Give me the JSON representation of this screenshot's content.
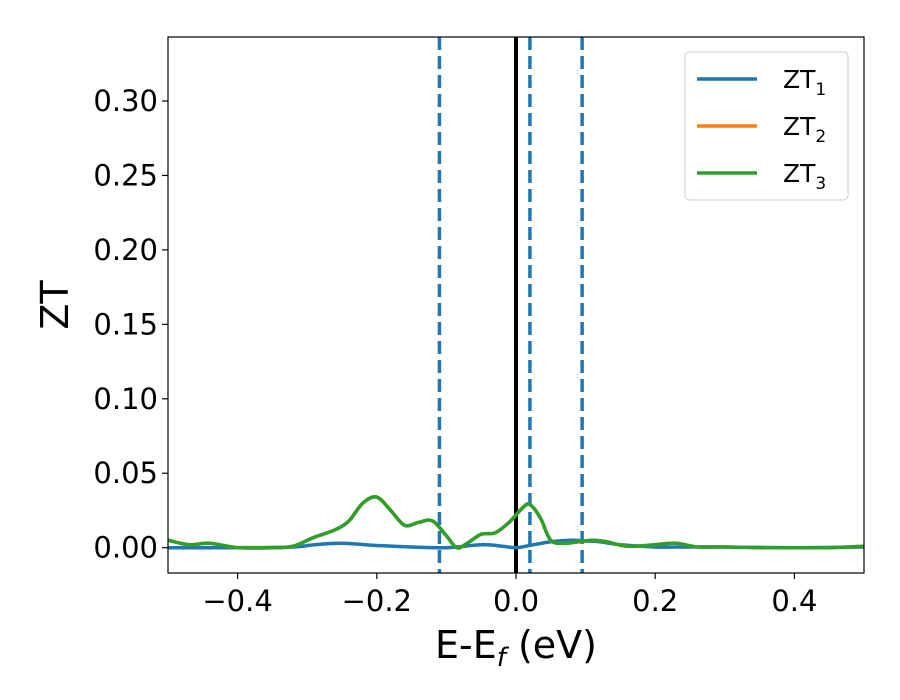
{
  "chart_data": {
    "type": "line",
    "title": "",
    "xlabel": "E-E",
    "xlabel_sub": "f",
    "xlabel_unit": " (eV)",
    "ylabel": "ZT",
    "xlim": [
      -0.5,
      0.5
    ],
    "ylim": [
      -0.017,
      0.343
    ],
    "xticks": [
      -0.4,
      -0.2,
      0.0,
      0.2,
      0.4
    ],
    "xtick_labels": [
      "−0.4",
      "−0.2",
      "0.0",
      "0.2",
      "0.4"
    ],
    "yticks": [
      0.0,
      0.05,
      0.1,
      0.15,
      0.2,
      0.25,
      0.3
    ],
    "ytick_labels": [
      "0.00",
      "0.05",
      "0.10",
      "0.15",
      "0.20",
      "0.25",
      "0.30"
    ],
    "grid": false,
    "legend_position": "top-right",
    "reference_lines": [
      {
        "x": 0.0,
        "style": "solid",
        "color": "#000000"
      },
      {
        "x": -0.11,
        "style": "dashed",
        "color": "#1f77b4"
      },
      {
        "x": 0.02,
        "style": "dashed",
        "color": "#1f77b4"
      },
      {
        "x": 0.095,
        "style": "dashed",
        "color": "#1f77b4"
      }
    ],
    "series": [
      {
        "name": "ZT",
        "sub": "1",
        "color": "#1f77b4",
        "x": [
          -0.5,
          -0.4,
          -0.32,
          -0.29,
          -0.25,
          -0.2,
          -0.15,
          -0.1,
          -0.05,
          -0.02,
          0.0,
          0.02,
          0.05,
          0.08,
          0.1,
          0.12,
          0.15,
          0.2,
          0.25,
          0.3,
          0.4,
          0.5
        ],
        "values": [
          0.0,
          0.0,
          0.0005,
          0.002,
          0.003,
          0.0015,
          0.0005,
          0.0,
          0.002,
          0.001,
          0.0,
          0.0015,
          0.004,
          0.005,
          0.0045,
          0.004,
          0.002,
          0.0005,
          0.0005,
          0.0005,
          0.0,
          0.0005
        ]
      },
      {
        "name": "ZT",
        "sub": "2",
        "color": "#ff7f0e",
        "x": [
          -0.5,
          -0.47,
          -0.44,
          -0.4,
          -0.35,
          -0.32,
          -0.29,
          -0.26,
          -0.24,
          -0.22,
          -0.2,
          -0.18,
          -0.16,
          -0.14,
          -0.12,
          -0.1,
          -0.085,
          -0.07,
          -0.05,
          -0.03,
          -0.01,
          0.01,
          0.02,
          0.035,
          0.05,
          0.07,
          0.09,
          0.11,
          0.13,
          0.16,
          0.2,
          0.23,
          0.26,
          0.3,
          0.35,
          0.4,
          0.45,
          0.5
        ],
        "values": [
          0.005,
          0.002,
          0.003,
          0.0,
          0.0,
          0.001,
          0.007,
          0.012,
          0.018,
          0.03,
          0.034,
          0.025,
          0.015,
          0.017,
          0.018,
          0.008,
          0.0,
          0.003,
          0.009,
          0.01,
          0.017,
          0.027,
          0.029,
          0.02,
          0.005,
          0.003,
          0.004,
          0.005,
          0.004,
          0.001,
          0.002,
          0.003,
          0.0005,
          0.0005,
          0.0,
          0.0,
          0.0,
          0.001
        ]
      },
      {
        "name": "ZT",
        "sub": "3",
        "color": "#2ca02c",
        "x": [
          -0.5,
          -0.47,
          -0.44,
          -0.4,
          -0.35,
          -0.32,
          -0.29,
          -0.26,
          -0.24,
          -0.22,
          -0.2,
          -0.18,
          -0.16,
          -0.14,
          -0.12,
          -0.1,
          -0.085,
          -0.07,
          -0.05,
          -0.03,
          -0.01,
          0.01,
          0.02,
          0.035,
          0.05,
          0.07,
          0.09,
          0.11,
          0.13,
          0.16,
          0.2,
          0.23,
          0.26,
          0.3,
          0.35,
          0.4,
          0.45,
          0.5
        ],
        "values": [
          0.005,
          0.002,
          0.003,
          0.0,
          0.0,
          0.001,
          0.007,
          0.012,
          0.018,
          0.03,
          0.034,
          0.025,
          0.015,
          0.017,
          0.018,
          0.008,
          0.0,
          0.003,
          0.009,
          0.01,
          0.017,
          0.027,
          0.029,
          0.02,
          0.005,
          0.003,
          0.004,
          0.005,
          0.004,
          0.001,
          0.002,
          0.003,
          0.0005,
          0.0005,
          0.0,
          0.0,
          0.0,
          0.001
        ]
      }
    ]
  }
}
